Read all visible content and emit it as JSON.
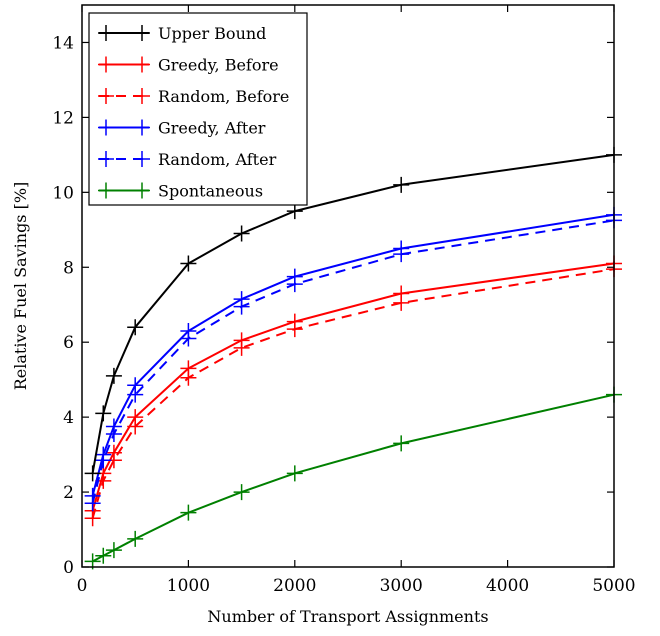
{
  "chart_data": {
    "type": "line",
    "xlabel": "Number of Transport Assignments",
    "ylabel": "Relative Fuel Savings [%]",
    "xlim": [
      0,
      5000
    ],
    "ylim": [
      0,
      15
    ],
    "x_ticks": [
      "0",
      "1000",
      "2000",
      "3000",
      "4000",
      "5000"
    ],
    "y_ticks": [
      "0",
      "2",
      "4",
      "6",
      "8",
      "10",
      "12",
      "14"
    ],
    "grid": false,
    "legend_position": "top-left",
    "marker": "plus",
    "series": [
      {
        "name": "Upper Bound",
        "color": "#000000",
        "dash": false,
        "x": [
          100,
          200,
          300,
          500,
          1000,
          1500,
          2000,
          3000,
          5000
        ],
        "y": [
          2.5,
          4.1,
          5.1,
          6.4,
          8.1,
          8.9,
          9.5,
          10.2,
          11.0
        ]
      },
      {
        "name": "Greedy, Before",
        "color": "#ff0000",
        "dash": false,
        "x": [
          100,
          200,
          300,
          500,
          1000,
          1500,
          2000,
          3000,
          5000
        ],
        "y": [
          1.5,
          2.5,
          3.05,
          4.0,
          5.3,
          6.05,
          6.55,
          7.3,
          8.1
        ]
      },
      {
        "name": "Random, Before",
        "color": "#ff0000",
        "dash": true,
        "x": [
          100,
          200,
          300,
          500,
          1000,
          1500,
          2000,
          3000,
          5000
        ],
        "y": [
          1.3,
          2.3,
          2.85,
          3.75,
          5.05,
          5.85,
          6.35,
          7.05,
          7.95
        ]
      },
      {
        "name": "Greedy, After",
        "color": "#0000ff",
        "dash": false,
        "x": [
          100,
          200,
          300,
          500,
          1000,
          1500,
          2000,
          3000,
          5000
        ],
        "y": [
          1.9,
          3.0,
          3.75,
          4.85,
          6.3,
          7.15,
          7.75,
          8.5,
          9.4
        ]
      },
      {
        "name": "Random, After",
        "color": "#0000ff",
        "dash": true,
        "x": [
          100,
          200,
          300,
          500,
          1000,
          1500,
          2000,
          3000,
          5000
        ],
        "y": [
          1.7,
          2.85,
          3.55,
          4.6,
          6.1,
          6.95,
          7.55,
          8.35,
          9.25
        ]
      },
      {
        "name": "Spontaneous",
        "color": "#008000",
        "dash": false,
        "x": [
          100,
          200,
          300,
          500,
          1000,
          1500,
          2000,
          3000,
          5000
        ],
        "y": [
          0.15,
          0.3,
          0.45,
          0.75,
          1.45,
          2.0,
          2.5,
          3.3,
          4.6
        ]
      }
    ]
  }
}
